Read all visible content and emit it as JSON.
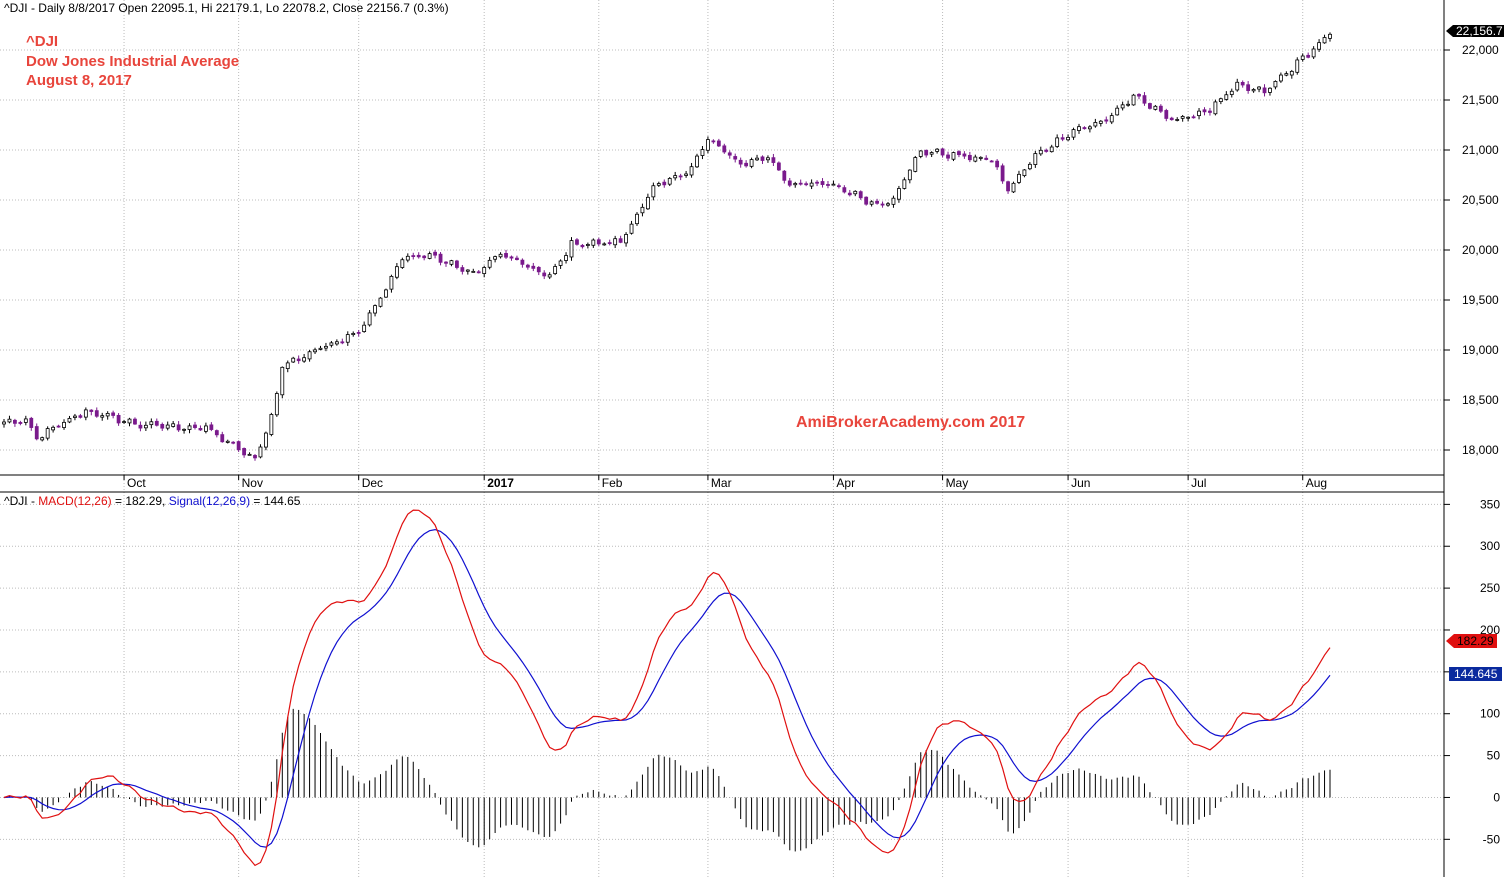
{
  "header": {
    "info": "^DJI - Daily 8/8/2017 Open 22095.1, Hi 22179.1, Lo 22078.2, Close 22156.7 (0.3%)",
    "title_lines": [
      "^DJI",
      "Dow Jones Industrial Average",
      "August 8, 2017"
    ],
    "watermark": "AmiBrokerAcademy.com  2017"
  },
  "colors": {
    "title": "#e8453c",
    "bull": "#ffffff",
    "bear": "#7a1a8c",
    "macd": "#e01010",
    "signal": "#1010d0",
    "hist": "#000000",
    "grid": "#bcbcbc",
    "last_price_bg": "#000000",
    "macd_tag_bg": "#e01010",
    "signal_tag_bg": "#0a2a9e"
  },
  "chart_data": [
    {
      "type": "candlestick",
      "title": "^DJI",
      "ylim": [
        17760,
        22280
      ],
      "y_ticks": [
        18000,
        18500,
        19000,
        19500,
        20000,
        20500,
        21000,
        21500,
        22000
      ],
      "y_tick_labels": [
        "18,000",
        "18,500",
        "19,000",
        "19,500",
        "20,000",
        "20,500",
        "21,000",
        "21,500",
        "22,000"
      ],
      "x_labels": [
        {
          "label": "Oct",
          "date": "2016-10-03"
        },
        {
          "label": "Nov",
          "date": "2016-11-01"
        },
        {
          "label": "Dec",
          "date": "2016-12-01"
        },
        {
          "label": "2017",
          "date": "2017-01-03"
        },
        {
          "label": "Feb",
          "date": "2017-02-01"
        },
        {
          "label": "Mar",
          "date": "2017-03-01"
        },
        {
          "label": "Apr",
          "date": "2017-04-03"
        },
        {
          "label": "May",
          "date": "2017-05-01"
        },
        {
          "label": "Jun",
          "date": "2017-06-01"
        },
        {
          "label": "Jul",
          "date": "2017-07-03"
        },
        {
          "label": "Aug",
          "date": "2017-08-01"
        }
      ],
      "last_price_label": "22,156.7",
      "anchors": [
        {
          "date": "2016-09-07",
          "close": 18280
        },
        {
          "date": "2016-09-09",
          "close": 18120
        },
        {
          "date": "2016-09-22",
          "close": 18390
        },
        {
          "date": "2016-10-06",
          "close": 18250
        },
        {
          "date": "2016-10-24",
          "close": 18220
        },
        {
          "date": "2016-11-04",
          "close": 17900
        },
        {
          "date": "2016-11-09",
          "close": 18330
        },
        {
          "date": "2016-11-11",
          "close": 18840
        },
        {
          "date": "2016-11-22",
          "close": 19020
        },
        {
          "date": "2016-12-01",
          "close": 19190
        },
        {
          "date": "2016-12-08",
          "close": 19610
        },
        {
          "date": "2016-12-13",
          "close": 19920
        },
        {
          "date": "2016-12-20",
          "close": 19950
        },
        {
          "date": "2016-12-30",
          "close": 19760
        },
        {
          "date": "2017-01-06",
          "close": 19960
        },
        {
          "date": "2017-01-19",
          "close": 19730
        },
        {
          "date": "2017-01-25",
          "close": 20060
        },
        {
          "date": "2017-02-03",
          "close": 20070
        },
        {
          "date": "2017-02-07",
          "close": 20090
        },
        {
          "date": "2017-02-15",
          "close": 20610
        },
        {
          "date": "2017-02-24",
          "close": 20820
        },
        {
          "date": "2017-03-01",
          "close": 21110
        },
        {
          "date": "2017-03-09",
          "close": 20860
        },
        {
          "date": "2017-03-16",
          "close": 20930
        },
        {
          "date": "2017-03-22",
          "close": 20660
        },
        {
          "date": "2017-04-03",
          "close": 20650
        },
        {
          "date": "2017-04-13",
          "close": 20450
        },
        {
          "date": "2017-04-18",
          "close": 20520
        },
        {
          "date": "2017-04-25",
          "close": 20990
        },
        {
          "date": "2017-05-12",
          "close": 20900
        },
        {
          "date": "2017-05-17",
          "close": 20600
        },
        {
          "date": "2017-05-24",
          "close": 20940
        },
        {
          "date": "2017-06-02",
          "close": 21200
        },
        {
          "date": "2017-06-09",
          "close": 21270
        },
        {
          "date": "2017-06-19",
          "close": 21530
        },
        {
          "date": "2017-06-29",
          "close": 21290
        },
        {
          "date": "2017-07-07",
          "close": 21410
        },
        {
          "date": "2017-07-14",
          "close": 21640
        },
        {
          "date": "2017-07-21",
          "close": 21580
        },
        {
          "date": "2017-08-08",
          "close": 22157
        }
      ]
    },
    {
      "type": "line",
      "title": "^DJI - MACD(12,26) = 182.29, Signal(12,26,9) = 144.65",
      "ylim": [
        -95,
        360
      ],
      "y_ticks": [
        -50,
        0,
        50,
        100,
        150,
        200,
        250,
        300,
        350
      ],
      "series": [
        {
          "name": "MACD(12,26) = 182.29",
          "color": "#e01010"
        },
        {
          "name": "Signal(12,26,9) = 144.65",
          "color": "#1010d0"
        }
      ],
      "histogram": "MACD - Signal",
      "macd_value_label": "182.29",
      "signal_value_label": "144.645"
    }
  ],
  "labels": {
    "macd_prefix": "^DJI - ",
    "macd_name": "MACD(12,26)",
    "macd_eq": " = 182.29, ",
    "signal_name": "Signal(12,26,9)",
    "signal_eq": " = 144.65"
  }
}
